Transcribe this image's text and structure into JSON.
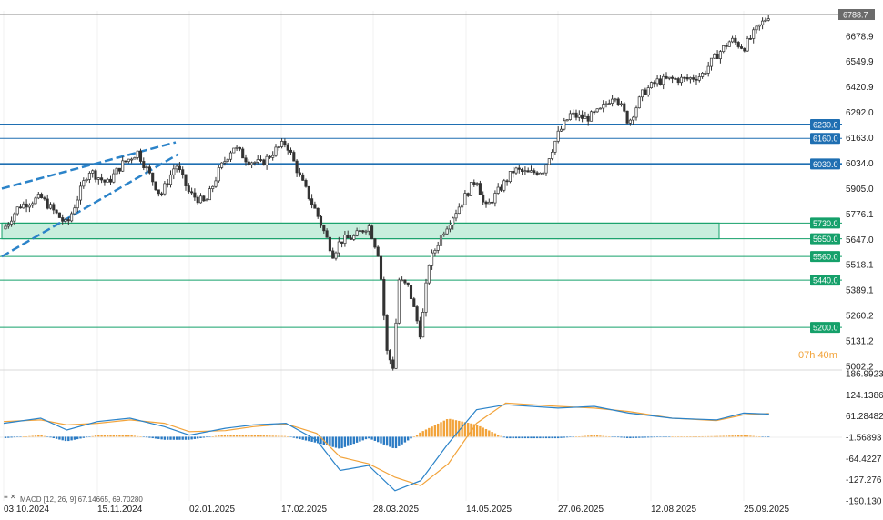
{
  "chart_data": [
    {
      "type": "candlestick",
      "title": "",
      "ylim": [
        5002.2,
        6807.2
      ],
      "y_ticks": [
        "6678.9",
        "6549.9",
        "6420.9",
        "6292.0",
        "6163.0",
        "6034.0",
        "5905.0",
        "5776.1",
        "5647.0",
        "5518.1",
        "5389.1",
        "5260.2",
        "5131.2",
        "5002.2"
      ],
      "x_ticks": [
        "03.10.2024",
        "15.11.2024",
        "02.01.2025",
        "17.02.2025",
        "28.03.2025",
        "14.05.2025",
        "27.06.2025",
        "12.08.2025",
        "25.09.2025"
      ],
      "current_price": "6788.7",
      "current_price_value": 6788.7,
      "horizontal_levels": [
        {
          "label": "6230.0",
          "value": 6230.0,
          "color": "#1f6fb2"
        },
        {
          "label": "6160.0",
          "value": 6160.0,
          "color": "#1f6fb2"
        },
        {
          "label": "6030.0",
          "value": 6030.0,
          "color": "#1f6fb2"
        },
        {
          "label": "5730.0",
          "value": 5730.0,
          "color": "#15a06a"
        },
        {
          "label": "5650.0",
          "value": 5650.0,
          "color": "#15a06a"
        },
        {
          "label": "5560.0",
          "value": 5560.0,
          "color": "#15a06a"
        },
        {
          "label": "5440.0",
          "value": 5440.0,
          "color": "#15a06a"
        },
        {
          "label": "5200.0",
          "value": 5200.0,
          "color": "#15a06a"
        }
      ],
      "zone": {
        "from": 5650.0,
        "to": 5730.0,
        "color": "#c8eedd"
      },
      "price_path": [
        [
          "03.10.2024",
          5700
        ],
        [
          "10.10.2024",
          5815
        ],
        [
          "20.10.2024",
          5860
        ],
        [
          "01.11.2024",
          5720
        ],
        [
          "11.11.2024",
          6000
        ],
        [
          "20.11.2024",
          5930
        ],
        [
          "28.11.2024",
          6030
        ],
        [
          "06.12.2024",
          6090
        ],
        [
          "18.12.2024",
          5870
        ],
        [
          "26.12.2024",
          6030
        ],
        [
          "02.01.2025",
          5880
        ],
        [
          "10.01.2025",
          5830
        ],
        [
          "17.01.2025",
          6000
        ],
        [
          "24.01.2025",
          6120
        ],
        [
          "31.01.2025",
          6050
        ],
        [
          "07.02.2025",
          6030
        ],
        [
          "14.02.2025",
          6100
        ],
        [
          "19.02.2025",
          6140
        ],
        [
          "25.02.2025",
          5960
        ],
        [
          "04.03.2025",
          5780
        ],
        [
          "11.03.2025",
          5570
        ],
        [
          "14.03.2025",
          5640
        ],
        [
          "20.03.2025",
          5660
        ],
        [
          "26.03.2025",
          5720
        ],
        [
          "31.03.2025",
          5560
        ],
        [
          "04.04.2025",
          5070
        ],
        [
          "08.04.2025",
          4980
        ],
        [
          "09.04.2025",
          5450
        ],
        [
          "15.04.2025",
          5400
        ],
        [
          "21.04.2025",
          5160
        ],
        [
          "25.04.2025",
          5520
        ],
        [
          "02.05.2025",
          5680
        ],
        [
          "12.05.2025",
          5840
        ],
        [
          "19.05.2025",
          5960
        ],
        [
          "23.05.2025",
          5800
        ],
        [
          "30.05.2025",
          5900
        ],
        [
          "06.06.2025",
          6000
        ],
        [
          "13.06.2025",
          5980
        ],
        [
          "20.06.2025",
          6000
        ],
        [
          "27.06.2025",
          6180
        ],
        [
          "03.07.2025",
          6280
        ],
        [
          "11.07.2025",
          6260
        ],
        [
          "18.07.2025",
          6300
        ],
        [
          "25.07.2025",
          6390
        ],
        [
          "01.08.2025",
          6240
        ],
        [
          "08.08.2025",
          6390
        ],
        [
          "15.08.2025",
          6450
        ],
        [
          "22.08.2025",
          6460
        ],
        [
          "29.08.2025",
          6460
        ],
        [
          "05.09.2025",
          6480
        ],
        [
          "12.09.2025",
          6580
        ],
        [
          "19.09.2025",
          6660
        ],
        [
          "25.09.2025",
          6620
        ],
        [
          "01.10.2025",
          6710
        ],
        [
          "07.10.2025",
          6788.7
        ]
      ],
      "timer": {
        "hours": "07",
        "h": "h",
        "minutes": "40",
        "m": "m"
      },
      "trendlines": "dashed-channel-oct-dec-2024"
    },
    {
      "type": "macd",
      "legend": "MACD [12, 26, 9] 67.14665, 69.70280",
      "ylim": [
        -190.13,
        186.9923
      ],
      "y_ticks": [
        "186.9923",
        "124.1386",
        "61.28482",
        "-1.56893",
        "-64.4227",
        "-127.276",
        "-190.130"
      ],
      "macd_path": [
        [
          "03.10.2024",
          40
        ],
        [
          "20.10.2024",
          55
        ],
        [
          "01.11.2024",
          20
        ],
        [
          "15.11.2024",
          45
        ],
        [
          "02.12.2024",
          55
        ],
        [
          "20.12.2024",
          30
        ],
        [
          "02.01.2025",
          5
        ],
        [
          "20.01.2025",
          25
        ],
        [
          "03.02.2025",
          35
        ],
        [
          "19.02.2025",
          40
        ],
        [
          "04.03.2025",
          -10
        ],
        [
          "14.03.2025",
          -100
        ],
        [
          "26.03.2025",
          -85
        ],
        [
          "08.04.2025",
          -160
        ],
        [
          "21.04.2025",
          -130
        ],
        [
          "05.05.2025",
          -20
        ],
        [
          "19.05.2025",
          80
        ],
        [
          "02.06.2025",
          95
        ],
        [
          "27.06.2025",
          85
        ],
        [
          "15.07.2025",
          90
        ],
        [
          "01.08.2025",
          70
        ],
        [
          "22.08.2025",
          55
        ],
        [
          "12.09.2025",
          50
        ],
        [
          "25.09.2025",
          70
        ],
        [
          "07.10.2025",
          67
        ]
      ],
      "signal_path": [
        [
          "03.10.2024",
          45
        ],
        [
          "20.10.2024",
          50
        ],
        [
          "01.11.2024",
          35
        ],
        [
          "15.11.2024",
          40
        ],
        [
          "02.12.2024",
          50
        ],
        [
          "20.12.2024",
          40
        ],
        [
          "02.01.2025",
          15
        ],
        [
          "20.01.2025",
          18
        ],
        [
          "03.02.2025",
          30
        ],
        [
          "19.02.2025",
          38
        ],
        [
          "04.03.2025",
          10
        ],
        [
          "14.03.2025",
          -60
        ],
        [
          "26.03.2025",
          -80
        ],
        [
          "08.04.2025",
          -120
        ],
        [
          "21.04.2025",
          -145
        ],
        [
          "05.05.2025",
          -80
        ],
        [
          "19.05.2025",
          40
        ],
        [
          "02.06.2025",
          100
        ],
        [
          "27.06.2025",
          90
        ],
        [
          "15.07.2025",
          85
        ],
        [
          "01.08.2025",
          75
        ],
        [
          "22.08.2025",
          55
        ],
        [
          "12.09.2025",
          48
        ],
        [
          "25.09.2025",
          65
        ],
        [
          "07.10.2025",
          69
        ]
      ],
      "histogram_color_up": "#f2a33a",
      "histogram_color_down": "#2b7bc4"
    }
  ]
}
